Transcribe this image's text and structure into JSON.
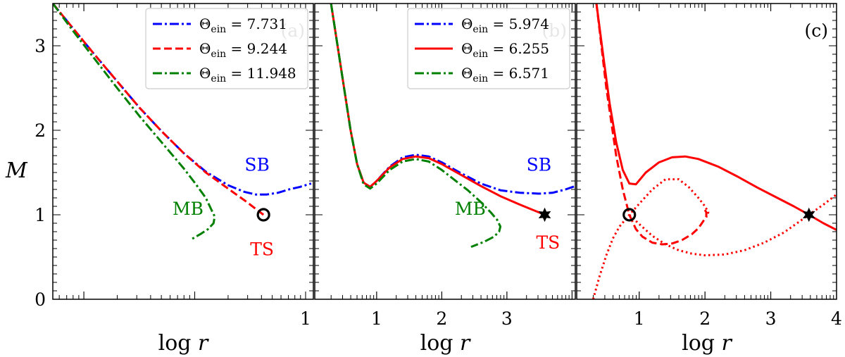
{
  "figure": {
    "ylabel": "M",
    "xlabel": "log r",
    "ylim": [
      0,
      3.5
    ],
    "yticks": [
      0,
      1,
      2,
      3
    ],
    "colors": {
      "blue": "#0000ff",
      "red": "#ff0000",
      "green": "#008000"
    }
  },
  "chart_data": [
    {
      "type": "line",
      "panel": "(a)",
      "xlabel": "log r",
      "ylabel": "M",
      "xlim": [
        -1.28,
        1.07
      ],
      "ylim": [
        0,
        3.5
      ],
      "xticks": [
        1
      ],
      "yticks": [
        0,
        1,
        2,
        3
      ],
      "legend_position": "top-right",
      "series": [
        {
          "name": "Θein = 7.731",
          "color": "#0000ff",
          "style": "dashdot",
          "x": [
            -1.28,
            -1.1,
            -0.9,
            -0.7,
            -0.5,
            -0.3,
            -0.1,
            0.1,
            0.3,
            0.45,
            0.55,
            0.65,
            0.75,
            0.85,
            0.95,
            1.05
          ],
          "y": [
            3.5,
            3.21,
            2.89,
            2.58,
            2.27,
            1.99,
            1.73,
            1.51,
            1.35,
            1.27,
            1.24,
            1.24,
            1.26,
            1.3,
            1.33,
            1.37
          ]
        },
        {
          "name": "Θein = 9.244",
          "color": "#ff0000",
          "style": "dashed",
          "x": [
            -1.28,
            -1.1,
            -0.9,
            -0.7,
            -0.5,
            -0.3,
            -0.1,
            0.1,
            0.3,
            0.45,
            0.55,
            0.62
          ],
          "y": [
            3.5,
            3.21,
            2.89,
            2.58,
            2.27,
            1.99,
            1.73,
            1.5,
            1.31,
            1.17,
            1.07,
            1.0
          ]
        },
        {
          "name": "Θein = 11.948",
          "color": "#008000",
          "style": "dashdot",
          "x": [
            -1.28,
            -1.1,
            -0.9,
            -0.7,
            -0.5,
            -0.3,
            -0.1,
            0.0,
            0.1,
            0.15,
            0.18,
            0.17,
            0.12,
            0.05,
            -0.03
          ],
          "y": [
            3.5,
            3.18,
            2.84,
            2.5,
            2.17,
            1.86,
            1.55,
            1.38,
            1.2,
            1.06,
            0.98,
            0.9,
            0.83,
            0.77,
            0.71
          ]
        }
      ],
      "annotations": [
        {
          "text": "SB",
          "color": "#0000ff",
          "x": 0.45,
          "y": 1.52
        },
        {
          "text": "MB",
          "color": "#008000",
          "x": -0.2,
          "y": 1.0
        },
        {
          "text": "TS",
          "color": "#ff0000",
          "x": 0.5,
          "y": 0.52
        }
      ],
      "markers": [
        {
          "shape": "circle",
          "x": 0.62,
          "y": 1.0
        }
      ]
    },
    {
      "type": "line",
      "panel": "(b)",
      "xlabel": "log r",
      "ylabel": "",
      "xlim": [
        0.05,
        4.05
      ],
      "ylim": [
        0,
        3.5
      ],
      "xticks": [
        1,
        2,
        3
      ],
      "yticks": [
        0,
        1,
        2,
        3
      ],
      "legend_position": "top-right",
      "series": [
        {
          "name": "Θein = 5.974",
          "color": "#0000ff",
          "style": "dashdot",
          "x": [
            0.3,
            0.4,
            0.5,
            0.6,
            0.7,
            0.8,
            0.9,
            1.0,
            1.2,
            1.4,
            1.6,
            1.8,
            2.0,
            2.3,
            2.6,
            2.9,
            3.2,
            3.5,
            3.7,
            3.9,
            4.05
          ],
          "y": [
            3.5,
            3.0,
            2.5,
            2.0,
            1.6,
            1.38,
            1.33,
            1.4,
            1.57,
            1.68,
            1.71,
            1.69,
            1.62,
            1.49,
            1.37,
            1.29,
            1.26,
            1.25,
            1.26,
            1.3,
            1.34
          ]
        },
        {
          "name": "Θein = 6.255",
          "color": "#ff0000",
          "style": "solid",
          "x": [
            0.3,
            0.4,
            0.5,
            0.6,
            0.7,
            0.8,
            0.9,
            1.0,
            1.2,
            1.4,
            1.6,
            1.8,
            2.0,
            2.3,
            2.6,
            2.9,
            3.2,
            3.58
          ],
          "y": [
            3.5,
            3.0,
            2.5,
            2.0,
            1.6,
            1.38,
            1.33,
            1.4,
            1.56,
            1.66,
            1.69,
            1.67,
            1.6,
            1.47,
            1.34,
            1.22,
            1.12,
            1.0
          ]
        },
        {
          "name": "Θein = 6.571",
          "color": "#008000",
          "style": "dashdot",
          "x": [
            0.3,
            0.4,
            0.5,
            0.6,
            0.7,
            0.8,
            0.9,
            1.0,
            1.2,
            1.4,
            1.6,
            1.8,
            2.0,
            2.2,
            2.4,
            2.6,
            2.75,
            2.85,
            2.9,
            2.88,
            2.8,
            2.65,
            2.45
          ],
          "y": [
            3.5,
            3.0,
            2.5,
            2.0,
            1.6,
            1.36,
            1.31,
            1.37,
            1.53,
            1.63,
            1.66,
            1.63,
            1.53,
            1.41,
            1.29,
            1.15,
            1.03,
            0.94,
            0.86,
            0.8,
            0.74,
            0.68,
            0.62
          ]
        }
      ],
      "annotations": [
        {
          "text": "SB",
          "color": "#0000ff",
          "x": 3.3,
          "y": 1.52
        },
        {
          "text": "MB",
          "color": "#008000",
          "x": 2.2,
          "y": 1.0
        },
        {
          "text": "TS",
          "color": "#ff0000",
          "x": 3.45,
          "y": 0.6
        }
      ],
      "markers": [
        {
          "shape": "star",
          "x": 3.58,
          "y": 1.0
        }
      ]
    },
    {
      "type": "line",
      "panel": "(c)",
      "xlabel": "log r",
      "ylabel": "",
      "xlim": [
        0.05,
        4.0
      ],
      "ylim": [
        0,
        3.5
      ],
      "xticks": [
        1,
        2,
        3,
        4
      ],
      "yticks": [
        0,
        1,
        2,
        3
      ],
      "series": [
        {
          "color": "#ff0000",
          "style": "solid",
          "x": [
            0.35,
            0.45,
            0.55,
            0.65,
            0.75,
            0.85,
            0.95,
            1.1,
            1.3,
            1.5,
            1.7,
            1.9,
            2.2,
            2.5,
            2.8,
            3.1,
            3.35,
            3.58,
            3.8,
            4.0
          ],
          "y": [
            3.5,
            2.9,
            2.32,
            1.86,
            1.53,
            1.37,
            1.36,
            1.5,
            1.62,
            1.68,
            1.69,
            1.66,
            1.57,
            1.45,
            1.32,
            1.2,
            1.1,
            1.0,
            0.9,
            0.82
          ]
        },
        {
          "color": "#ff0000",
          "style": "dashed",
          "x": [
            0.35,
            0.5,
            0.65,
            0.75,
            0.85,
            0.95,
            1.05,
            1.2,
            1.35,
            1.5,
            1.65,
            1.8,
            1.9,
            1.97,
            2.02,
            2.02,
            1.98
          ],
          "y": [
            3.5,
            2.5,
            1.7,
            1.3,
            1.0,
            0.83,
            0.74,
            0.67,
            0.65,
            0.66,
            0.7,
            0.77,
            0.84,
            0.92,
            0.98,
            1.03,
            1.08
          ]
        },
        {
          "color": "#ff0000",
          "style": "dotted",
          "x": [
            0.3,
            0.4,
            0.5,
            0.6,
            0.7,
            0.85,
            1.0,
            1.2,
            1.4,
            1.6,
            1.75,
            1.9,
            2.0,
            2.05,
            2.02
          ],
          "y": [
            0.0,
            0.28,
            0.52,
            0.72,
            0.86,
            1.0,
            1.13,
            1.3,
            1.42,
            1.42,
            1.33,
            1.2,
            1.1,
            1.03,
            0.97
          ]
        },
        {
          "color": "#ff0000",
          "style": "dotted",
          "x": [
            0.85,
            1.0,
            1.2,
            1.4,
            1.6,
            1.8,
            2.0,
            2.3,
            2.6,
            2.9,
            3.2,
            3.58,
            3.8,
            4.0
          ],
          "y": [
            1.0,
            0.89,
            0.75,
            0.65,
            0.58,
            0.54,
            0.52,
            0.53,
            0.58,
            0.67,
            0.79,
            1.0,
            1.12,
            1.24
          ]
        }
      ],
      "markers": [
        {
          "shape": "circle",
          "x": 0.85,
          "y": 1.0
        },
        {
          "shape": "star",
          "x": 3.58,
          "y": 1.0
        }
      ]
    }
  ]
}
